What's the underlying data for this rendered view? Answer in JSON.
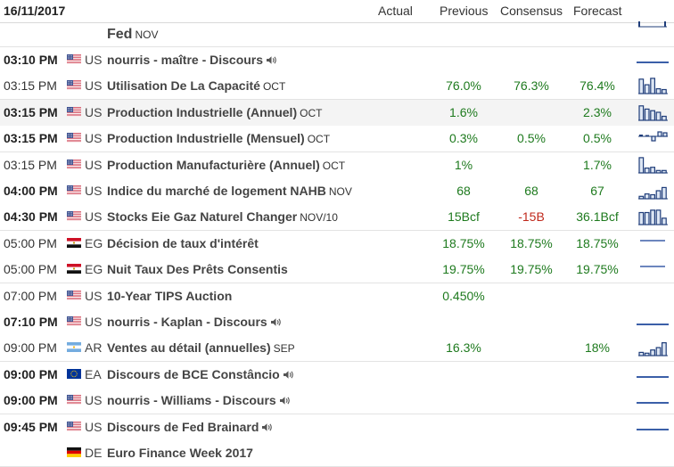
{
  "header": {
    "date": "16/11/2017",
    "actual": "Actual",
    "previous": "Previous",
    "consensus": "Consensus",
    "forecast": "Forecast"
  },
  "partial_row": {
    "event": "Fed",
    "period": "NOV"
  },
  "rows": [
    {
      "time": "03:10 PM",
      "bold": true,
      "country": "US",
      "flag": "us",
      "event": "nourris - maître - Discours",
      "period": "",
      "speech": true,
      "previous": "",
      "consensus": "",
      "forecast": "",
      "spark": "line"
    },
    {
      "time": "03:15 PM",
      "bold": false,
      "country": "US",
      "flag": "us",
      "event": "Utilisation De La Capacité",
      "period": "OCT",
      "speech": false,
      "previous": "76.0%",
      "consensus": "76.3%",
      "forecast": "76.4%",
      "spark": "bars",
      "bars": [
        0.9,
        0.55,
        0.95,
        0.3,
        0.25
      ]
    },
    {
      "time": "03:15 PM",
      "bold": true,
      "country": "US",
      "flag": "us",
      "event": "Production Industrielle (Annuel)",
      "period": "OCT",
      "speech": false,
      "previous": "1.6%",
      "consensus": "",
      "forecast": "2.3%",
      "spark": "bars",
      "bars": [
        0.9,
        0.7,
        0.6,
        0.5,
        0.25
      ]
    },
    {
      "time": "03:15 PM",
      "bold": true,
      "country": "US",
      "flag": "us",
      "event": "Production Industrielle (Mensuel)",
      "period": "OCT",
      "speech": false,
      "previous": "0.3%",
      "consensus": "0.5%",
      "forecast": "0.5%",
      "spark": "mixed"
    },
    {
      "time": "03:15 PM",
      "bold": false,
      "country": "US",
      "flag": "us",
      "event": "Production Manufacturière (Annuel)",
      "period": "OCT",
      "speech": false,
      "previous": "1%",
      "consensus": "",
      "forecast": "1.7%",
      "spark": "bars",
      "bars": [
        0.95,
        0.3,
        0.35,
        0.15,
        0.15
      ]
    },
    {
      "time": "04:00 PM",
      "bold": true,
      "country": "US",
      "flag": "us",
      "event": "Indice du marché de logement NAHB",
      "period": "NOV",
      "speech": false,
      "previous": "68",
      "consensus": "68",
      "forecast": "67",
      "spark": "bars",
      "bars": [
        0.15,
        0.3,
        0.25,
        0.5,
        0.7
      ]
    },
    {
      "time": "04:30 PM",
      "bold": true,
      "country": "US",
      "flag": "us",
      "event": "Stocks Eie Gaz Naturel Changer",
      "period": "NOV/10",
      "speech": false,
      "previous": "15Bcf",
      "consensus": "-15B",
      "consensus_red": true,
      "forecast": "36.1Bcf",
      "spark": "bars",
      "bars": [
        0.75,
        0.75,
        0.9,
        0.9,
        0.4
      ]
    },
    {
      "time": "05:00 PM",
      "bold": false,
      "country": "EG",
      "flag": "eg",
      "event": "Décision de taux d'intérêt",
      "period": "",
      "speech": false,
      "previous": "18.75%",
      "consensus": "18.75%",
      "forecast": "18.75%",
      "spark": "line-high"
    },
    {
      "time": "05:00 PM",
      "bold": false,
      "country": "EG",
      "flag": "eg",
      "event": "Nuit Taux Des Prêts Consentis",
      "period": "",
      "speech": false,
      "previous": "19.75%",
      "consensus": "19.75%",
      "forecast": "19.75%",
      "spark": "line-high"
    },
    {
      "time": "07:00 PM",
      "bold": false,
      "country": "US",
      "flag": "us",
      "event": "10-Year TIPS Auction",
      "period": "",
      "speech": false,
      "previous": "0.450%",
      "consensus": "",
      "forecast": "",
      "spark": "none"
    },
    {
      "time": "07:10 PM",
      "bold": true,
      "country": "US",
      "flag": "us",
      "event": "nourris - Kaplan - Discours",
      "period": "",
      "speech": true,
      "previous": "",
      "consensus": "",
      "forecast": "",
      "spark": "line"
    },
    {
      "time": "09:00 PM",
      "bold": false,
      "country": "AR",
      "flag": "ar",
      "event": "Ventes au détail (annuelles)",
      "period": "SEP",
      "speech": false,
      "previous": "16.3%",
      "consensus": "",
      "forecast": "18%",
      "spark": "bars",
      "bars": [
        0.2,
        0.15,
        0.35,
        0.5,
        0.8
      ]
    },
    {
      "time": "09:00 PM",
      "bold": true,
      "country": "EA",
      "flag": "eu",
      "event": "Discours de BCE Constâncio",
      "period": "",
      "speech": true,
      "previous": "",
      "consensus": "",
      "forecast": "",
      "spark": "line"
    },
    {
      "time": "09:00 PM",
      "bold": true,
      "country": "US",
      "flag": "us",
      "event": "nourris - Williams - Discours",
      "period": "",
      "speech": true,
      "previous": "",
      "consensus": "",
      "forecast": "",
      "spark": "line"
    },
    {
      "time": "09:45 PM",
      "bold": true,
      "country": "US",
      "flag": "us",
      "event": "Discours de Fed Brainard",
      "period": "",
      "speech": true,
      "previous": "",
      "consensus": "",
      "forecast": "",
      "spark": "line"
    },
    {
      "time": "",
      "bold": false,
      "country": "DE",
      "flag": "de",
      "event": "Euro Finance Week 2017",
      "period": "",
      "speech": false,
      "previous": "",
      "consensus": "",
      "forecast": "",
      "spark": "none"
    }
  ]
}
